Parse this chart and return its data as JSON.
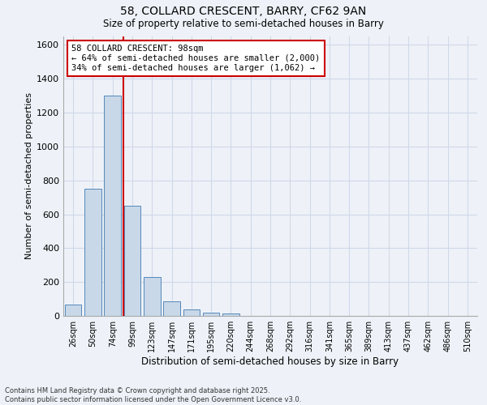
{
  "title_line1": "58, COLLARD CRESCENT, BARRY, CF62 9AN",
  "title_line2": "Size of property relative to semi-detached houses in Barry",
  "xlabel": "Distribution of semi-detached houses by size in Barry",
  "ylabel": "Number of semi-detached properties",
  "bar_labels": [
    "26sqm",
    "50sqm",
    "74sqm",
    "99sqm",
    "123sqm",
    "147sqm",
    "171sqm",
    "195sqm",
    "220sqm",
    "244sqm",
    "268sqm",
    "292sqm",
    "316sqm",
    "341sqm",
    "365sqm",
    "389sqm",
    "413sqm",
    "437sqm",
    "462sqm",
    "486sqm",
    "510sqm"
  ],
  "bar_values": [
    65,
    750,
    1300,
    650,
    230,
    85,
    40,
    20,
    15,
    0,
    0,
    0,
    0,
    0,
    0,
    0,
    0,
    0,
    0,
    0,
    0
  ],
  "bar_color": "#c8d8e8",
  "bar_edge_color": "#5588bb",
  "grid_color": "#d0d8e8",
  "background_color": "#eef2f8",
  "annotation_text": "58 COLLARD CRESCENT: 98sqm\n← 64% of semi-detached houses are smaller (2,000)\n34% of semi-detached houses are larger (1,062) →",
  "annotation_box_color": "#ffffff",
  "annotation_edge_color": "#cc0000",
  "red_line_color": "#cc0000",
  "ylim": [
    0,
    1650
  ],
  "yticks": [
    0,
    200,
    400,
    600,
    800,
    1000,
    1200,
    1400,
    1600
  ],
  "footnote": "Contains HM Land Registry data © Crown copyright and database right 2025.\nContains public sector information licensed under the Open Government Licence v3.0."
}
